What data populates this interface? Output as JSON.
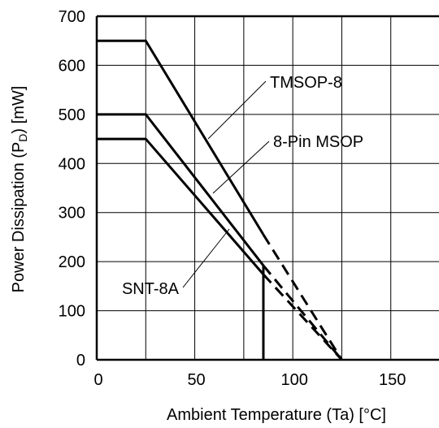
{
  "chart_data": {
    "type": "line",
    "title": "",
    "xlabel": "Ambient Temperature (Ta) [°C]",
    "ylabel_parts": [
      "Power Dissipation (P",
      "D",
      ") [mW]"
    ],
    "xlim": [
      0,
      175
    ],
    "ylim": [
      0,
      700
    ],
    "xticks": [
      0,
      50,
      100,
      150
    ],
    "yticks": [
      0,
      100,
      200,
      300,
      400,
      500,
      600,
      700
    ],
    "grid": true,
    "series": [
      {
        "name": "TMSOP-8",
        "solid": [
          [
            0,
            650
          ],
          [
            25,
            650
          ],
          [
            85,
            255
          ]
        ],
        "dashed": [
          [
            85,
            255
          ],
          [
            125,
            0
          ]
        ],
        "label_at": [
          105,
          593
        ]
      },
      {
        "name": "8-Pin MSOP",
        "solid": [
          [
            0,
            500
          ],
          [
            25,
            500
          ],
          [
            85,
            192
          ]
        ],
        "dashed": [
          [
            85,
            192
          ],
          [
            125,
            0
          ]
        ],
        "label_at": [
          105,
          440
        ]
      },
      {
        "name": "SNT-8A",
        "solid": [
          [
            0,
            450
          ],
          [
            25,
            450
          ],
          [
            85,
            174
          ]
        ],
        "dashed": [
          [
            85,
            174
          ],
          [
            125,
            0
          ]
        ],
        "label_at": [
          41,
          155
        ]
      }
    ],
    "vertical_drop": {
      "x": 85,
      "y_from": 192,
      "y_to": 0
    }
  }
}
